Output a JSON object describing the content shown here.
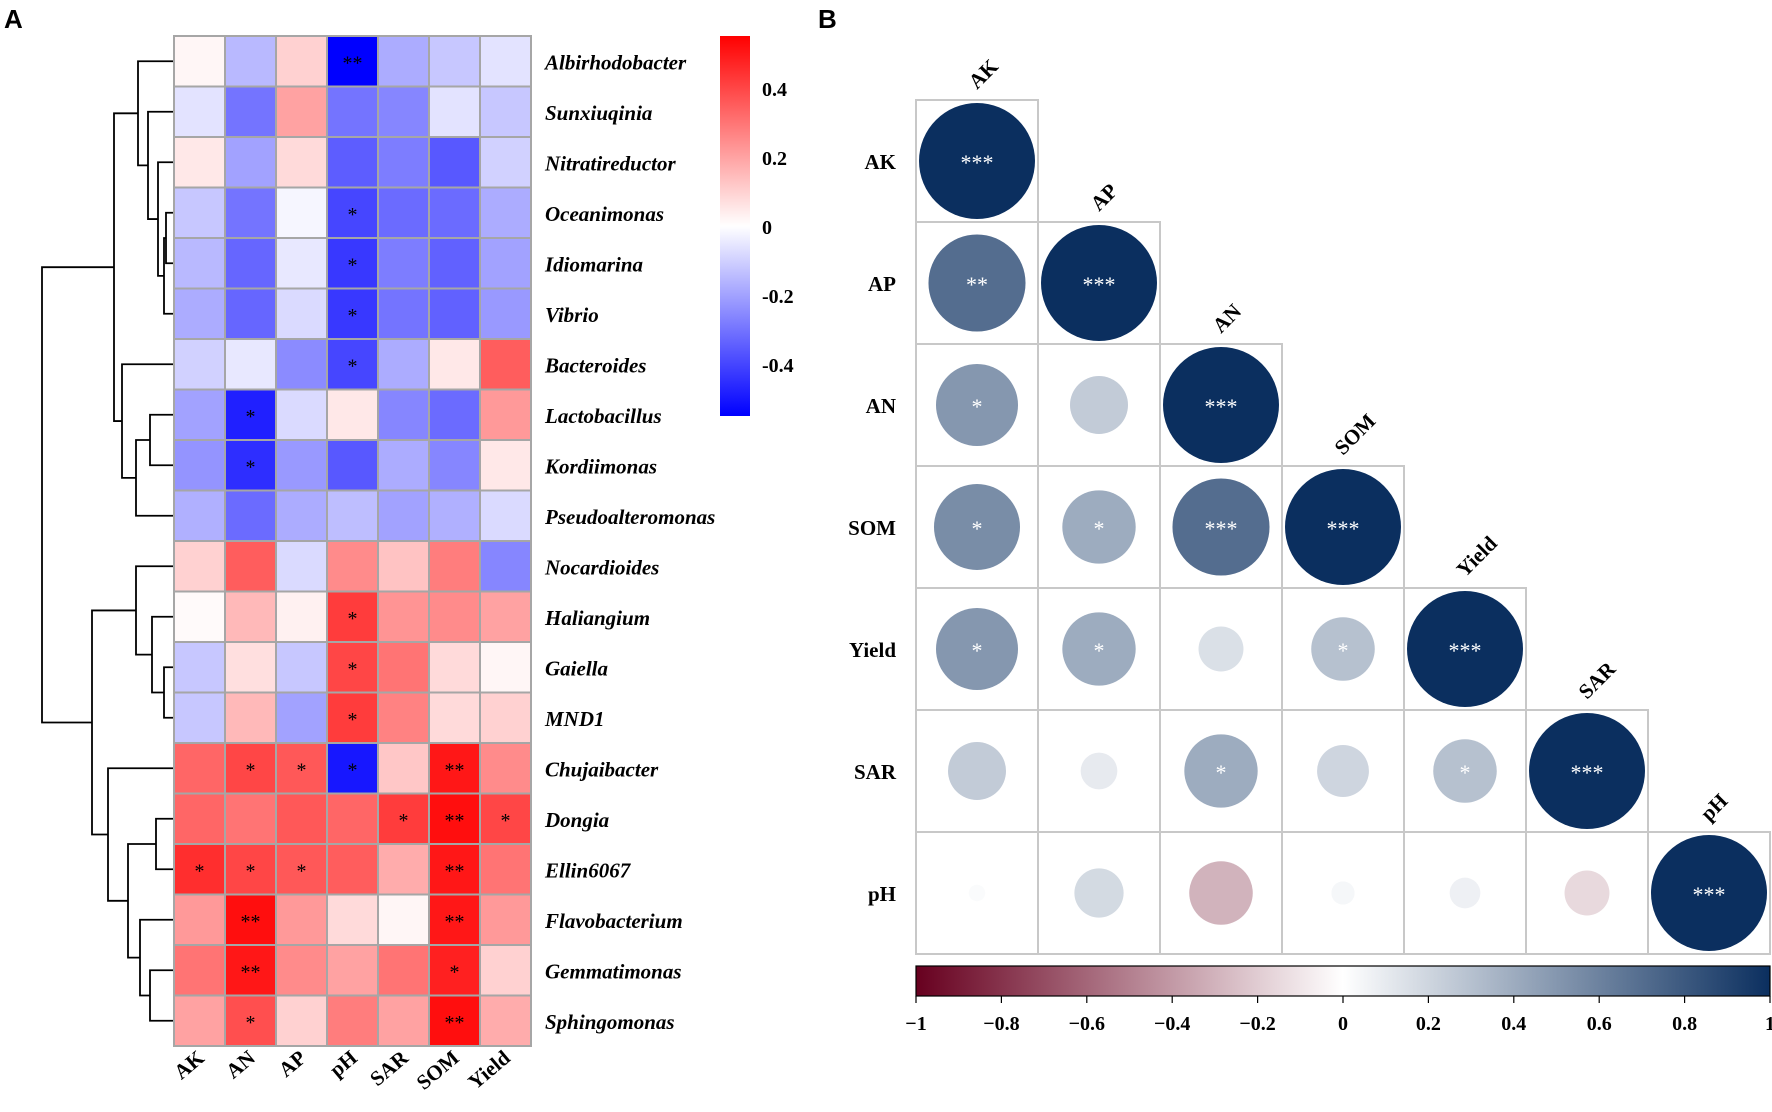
{
  "panel_labels": [
    "A",
    "B"
  ],
  "chart_data": [
    {
      "type": "heatmap",
      "panel": "A",
      "rows": [
        "Albirhodobacter",
        "Sunxiuqinia",
        "Nitratireductor",
        "Oceanimonas",
        "Idiomarina",
        "Vibrio",
        "Bacteroides",
        "Lactobacillus",
        "Kordiimonas",
        "Pseudoalteromonas",
        "Nocardioides",
        "Haliangium",
        "Gaiella",
        "MND1",
        "Chujaibacter",
        "Dongia",
        "Ellin6067",
        "Flavobacterium",
        "Gemmatimonas",
        "Sphingomonas"
      ],
      "columns": [
        "AK",
        "AN",
        "AP",
        "pH",
        "SAR",
        "SOM",
        "Yield"
      ],
      "values": [
        [
          0.02,
          -0.15,
          0.1,
          -0.55,
          -0.18,
          -0.12,
          -0.06
        ],
        [
          -0.06,
          -0.3,
          0.2,
          -0.3,
          -0.26,
          -0.06,
          -0.12
        ],
        [
          0.05,
          -0.2,
          0.08,
          -0.35,
          -0.28,
          -0.36,
          -0.1
        ],
        [
          -0.12,
          -0.3,
          -0.02,
          -0.4,
          -0.32,
          -0.32,
          -0.18
        ],
        [
          -0.15,
          -0.33,
          -0.05,
          -0.43,
          -0.28,
          -0.34,
          -0.2
        ],
        [
          -0.18,
          -0.33,
          -0.08,
          -0.43,
          -0.3,
          -0.34,
          -0.22
        ],
        [
          -0.1,
          -0.05,
          -0.25,
          -0.4,
          -0.18,
          0.05,
          0.35
        ],
        [
          -0.2,
          -0.48,
          -0.08,
          0.05,
          -0.26,
          -0.32,
          0.22
        ],
        [
          -0.23,
          -0.45,
          -0.22,
          -0.36,
          -0.18,
          -0.26,
          0.05
        ],
        [
          -0.17,
          -0.32,
          -0.18,
          -0.14,
          -0.2,
          -0.17,
          -0.08
        ],
        [
          0.1,
          0.35,
          -0.08,
          0.25,
          0.13,
          0.28,
          -0.26
        ],
        [
          0.01,
          0.15,
          0.03,
          0.42,
          0.23,
          0.25,
          0.2
        ],
        [
          -0.12,
          0.07,
          -0.12,
          0.4,
          0.3,
          0.08,
          0.02
        ],
        [
          -0.12,
          0.15,
          -0.2,
          0.42,
          0.27,
          0.08,
          0.1
        ],
        [
          0.33,
          0.4,
          0.36,
          -0.5,
          0.12,
          0.5,
          0.25
        ],
        [
          0.33,
          0.3,
          0.36,
          0.33,
          0.42,
          0.52,
          0.4
        ],
        [
          0.45,
          0.4,
          0.36,
          0.35,
          0.18,
          0.5,
          0.3
        ],
        [
          0.22,
          0.52,
          0.22,
          0.08,
          0.02,
          0.5,
          0.22
        ],
        [
          0.3,
          0.5,
          0.25,
          0.2,
          0.3,
          0.48,
          0.1
        ],
        [
          0.2,
          0.38,
          0.1,
          0.28,
          0.2,
          0.52,
          0.18
        ]
      ],
      "significance": [
        [
          "",
          "",
          "",
          "**",
          "",
          "",
          ""
        ],
        [
          "",
          "",
          "",
          "",
          "",
          "",
          ""
        ],
        [
          "",
          "",
          "",
          "",
          "",
          "",
          ""
        ],
        [
          "",
          "",
          "",
          "*",
          "",
          "",
          ""
        ],
        [
          "",
          "",
          "",
          "*",
          "",
          "",
          ""
        ],
        [
          "",
          "",
          "",
          "*",
          "",
          "",
          ""
        ],
        [
          "",
          "",
          "",
          "*",
          "",
          "",
          ""
        ],
        [
          "",
          "*",
          "",
          "",
          "",
          "",
          ""
        ],
        [
          "",
          "*",
          "",
          "",
          "",
          "",
          ""
        ],
        [
          "",
          "",
          "",
          "",
          "",
          "",
          ""
        ],
        [
          "",
          "",
          "",
          "",
          "",
          "",
          ""
        ],
        [
          "",
          "",
          "",
          "*",
          "",
          "",
          ""
        ],
        [
          "",
          "",
          "",
          "*",
          "",
          "",
          ""
        ],
        [
          "",
          "",
          "",
          "*",
          "",
          "",
          ""
        ],
        [
          "",
          "*",
          "*",
          "*",
          "",
          "**",
          ""
        ],
        [
          "",
          "",
          "",
          "",
          "*",
          "**",
          "*"
        ],
        [
          "*",
          "*",
          "*",
          "",
          "",
          "**",
          ""
        ],
        [
          "",
          "**",
          "",
          "",
          "",
          "**",
          ""
        ],
        [
          "",
          "**",
          "",
          "",
          "",
          "*",
          ""
        ],
        [
          "",
          "*",
          "",
          "",
          "",
          "**",
          ""
        ]
      ],
      "colorbar": {
        "range": [
          -0.55,
          0.55
        ],
        "ticks": [
          "0.4",
          "0.2",
          "0",
          "-0.2",
          "-0.4"
        ],
        "tick_values": [
          0.4,
          0.2,
          0,
          -0.2,
          -0.4
        ]
      },
      "colors": {
        "low": "#0000ff",
        "mid": "#ffffff",
        "high": "#ff0000",
        "grid": "#a6a6a6",
        "tree": "#000000"
      },
      "dendrogram": "hierarchical clustering of rows (shown at left)"
    },
    {
      "type": "heatmap",
      "subtype": "correlation-circle-matrix",
      "panel": "B",
      "variables": [
        "AK",
        "AP",
        "AN",
        "SOM",
        "Yield",
        "SAR",
        "pH"
      ],
      "lower_triangle": [
        [
          1.0
        ],
        [
          0.7,
          1.0
        ],
        [
          0.5,
          0.25,
          1.0
        ],
        [
          0.55,
          0.4,
          0.7,
          1.0
        ],
        [
          0.5,
          0.4,
          0.15,
          0.3,
          1.0
        ],
        [
          0.25,
          0.1,
          0.4,
          0.2,
          0.3,
          1.0
        ],
        [
          0.02,
          0.18,
          -0.3,
          0.04,
          0.07,
          -0.15,
          1.0
        ]
      ],
      "significance": [
        [
          "***"
        ],
        [
          "**",
          "***"
        ],
        [
          "*",
          "",
          "***"
        ],
        [
          "*",
          "*",
          "***",
          "***"
        ],
        [
          "*",
          "*",
          "",
          "*",
          "***"
        ],
        [
          "",
          "",
          "*",
          "",
          "*",
          "***"
        ],
        [
          "",
          "",
          "",
          "",
          "",
          "",
          "***"
        ]
      ],
      "colorbar": {
        "range": [
          -1,
          1
        ],
        "ticks": [
          "−1",
          "−0.8",
          "−0.6",
          "−0.4",
          "−0.2",
          "0",
          "0.2",
          "0.4",
          "0.6",
          "0.8",
          "1"
        ],
        "tick_values": [
          -1,
          -0.8,
          -0.6,
          -0.4,
          -0.2,
          0,
          0.2,
          0.4,
          0.6,
          0.8,
          1
        ]
      },
      "colors": {
        "neg": "#67001f",
        "mid": "#ffffff",
        "pos": "#0b2f5f",
        "grid": "#c8c8c8"
      }
    }
  ]
}
